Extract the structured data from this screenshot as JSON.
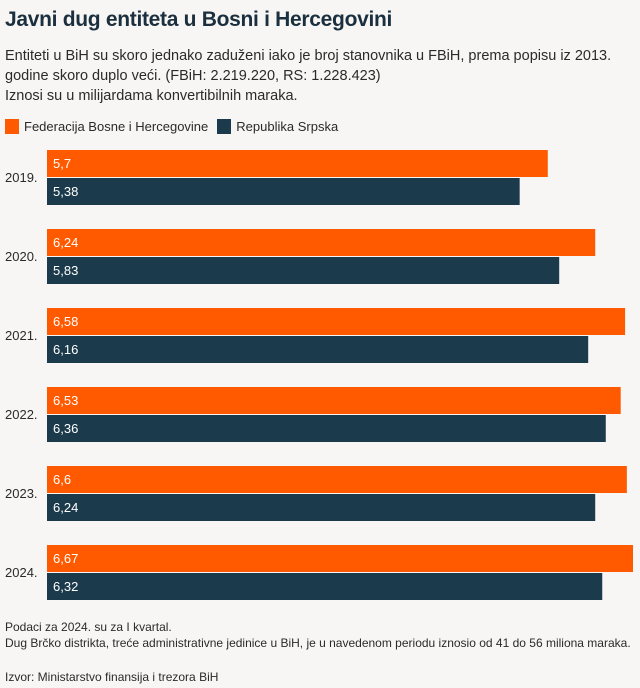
{
  "chart_data": {
    "type": "bar",
    "orientation": "horizontal",
    "title": "Javni dug entiteta u Bosni i Hercegovini",
    "subtitle": "Entiteti u BiH su skoro jednako zaduženi iako je broj stanovnika u FBiH, prema popisu iz 2013. godine skoro duplo veći. (FBiH: 2.219.220, RS: 1.228.423)",
    "subtitle2": "Iznosi su u milijardama konvertibilnih maraka.",
    "categories": [
      "2019.",
      "2020.",
      "2021.",
      "2022.",
      "2023.",
      "2024."
    ],
    "series": [
      {
        "name": "Federacija Bosne i Hercegovine",
        "color": "#ff5a00",
        "values": [
          5.7,
          6.24,
          6.58,
          6.53,
          6.6,
          6.67
        ],
        "labels": [
          "5,7",
          "6,24",
          "6,58",
          "6,53",
          "6,6",
          "6,67"
        ]
      },
      {
        "name": "Republika Srpska",
        "color": "#1b3a4b",
        "values": [
          5.38,
          5.83,
          6.16,
          6.36,
          6.24,
          6.32
        ],
        "labels": [
          "5,38",
          "5,83",
          "6,16",
          "6,36",
          "6,24",
          "6,32"
        ]
      }
    ],
    "xlim": [
      0,
      6.67
    ],
    "grid": false,
    "legend": "top-left",
    "notes": [
      "Podaci za 2024. su za I kvartal.",
      "Dug Brčko distrikta, treće administrativne jedinice u BiH, je u navedenom periodu iznosio od 41 do 56 miliona maraka."
    ],
    "source": "Izvor: Ministarstvo finansija i trezora BiH"
  }
}
